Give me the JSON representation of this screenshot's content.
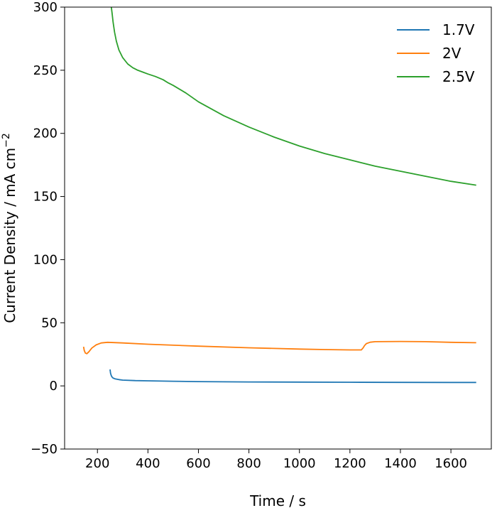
{
  "chart_data": {
    "type": "line",
    "title": "",
    "xlabel": "Time / s",
    "ylabel_main": "Current Density / mA cm",
    "ylabel_sup": "−2",
    "xlim": [
      70,
      1760
    ],
    "ylim": [
      -50,
      300
    ],
    "x_ticks": [
      200,
      400,
      600,
      800,
      1000,
      1200,
      1400,
      1600
    ],
    "y_ticks": [
      -50,
      0,
      50,
      100,
      150,
      200,
      250,
      300
    ],
    "x_tick_labels": [
      "200",
      "400",
      "600",
      "800",
      "1000",
      "1200",
      "1400",
      "1600"
    ],
    "y_tick_labels": [
      "−50",
      "0",
      "50",
      "100",
      "150",
      "200",
      "250",
      "300"
    ],
    "grid": false,
    "legend_position": "top-right",
    "series": [
      {
        "name": "1.7V",
        "color": "#1f77b4",
        "x": [
          250,
          252,
          255,
          258,
          262,
          270,
          285,
          300,
          350,
          400,
          500,
          600,
          800,
          1000,
          1200,
          1400,
          1600,
          1700
        ],
        "y": [
          13,
          10,
          8,
          7,
          6.2,
          5.6,
          5.0,
          4.6,
          4.2,
          4.0,
          3.7,
          3.4,
          3.1,
          3.0,
          2.9,
          2.8,
          2.7,
          2.7
        ]
      },
      {
        "name": "2V",
        "color": "#ff7f0e",
        "x": [
          145,
          148,
          152,
          158,
          166,
          178,
          195,
          215,
          240,
          300,
          400,
          600,
          800,
          1000,
          1100,
          1200,
          1245,
          1252,
          1258,
          1265,
          1280,
          1300,
          1400,
          1500,
          1600,
          1700
        ],
        "y": [
          31,
          28,
          26,
          25.5,
          27,
          30,
          32.5,
          34,
          34.5,
          34,
          33,
          31.5,
          30.2,
          29.2,
          28.8,
          28.5,
          28.5,
          30,
          32,
          33.5,
          34.6,
          35,
          35.2,
          35,
          34.5,
          34.2
        ]
      },
      {
        "name": "2.5V",
        "color": "#2ca02c",
        "x": [
          255,
          258,
          262,
          268,
          275,
          285,
          300,
          320,
          340,
          360,
          380,
          400,
          430,
          460,
          480,
          500,
          550,
          600,
          700,
          800,
          900,
          1000,
          1100,
          1200,
          1300,
          1400,
          1500,
          1600,
          1700
        ],
        "y": [
          300,
          295,
          288,
          280,
          273,
          266,
          260,
          255,
          252,
          250,
          248.5,
          247,
          245,
          242.5,
          240,
          238,
          232,
          225,
          214,
          205,
          197,
          190,
          184,
          179,
          174,
          170,
          166,
          162,
          159
        ]
      }
    ]
  }
}
